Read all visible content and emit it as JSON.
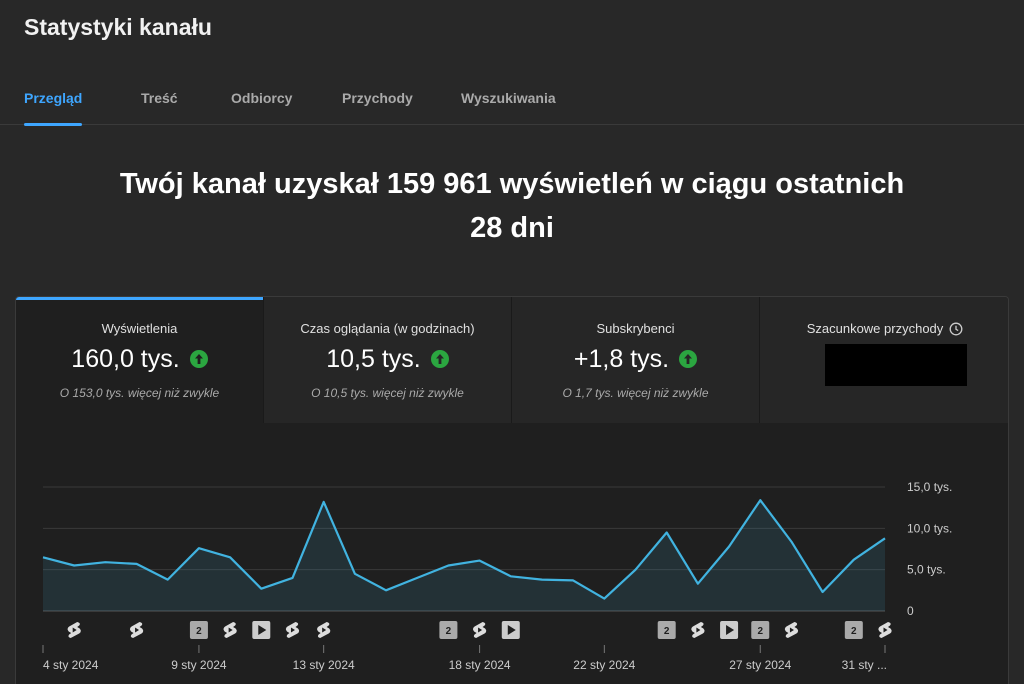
{
  "header": {
    "title": "Statystyki kanału"
  },
  "tabs": [
    {
      "label": "Przegląd",
      "active": true
    },
    {
      "label": "Treść",
      "active": false
    },
    {
      "label": "Odbiorcy",
      "active": false
    },
    {
      "label": "Przychody",
      "active": false
    },
    {
      "label": "Wyszukiwania",
      "active": false
    }
  ],
  "headline": {
    "line1": "Twój kanał uzyskał 159 961 wyświetleń w ciągu ostatnich",
    "line2": "28 dni"
  },
  "metrics": [
    {
      "label": "Wyświetlenia",
      "value": "160,0 tys.",
      "sub": "O 153,0 tys. więcej niż zwykle",
      "trend": "up",
      "active": true
    },
    {
      "label": "Czas oglądania (w godzinach)",
      "value": "10,5 tys.",
      "sub": "O 10,5 tys. więcej niż zwykle",
      "trend": "up",
      "active": false
    },
    {
      "label": "Subskrybenci",
      "value": "+1,8 tys.",
      "sub": "O 1,7 tys. więcej niż zwykle",
      "trend": "up",
      "active": false
    },
    {
      "label": "Szacunkowe przychody",
      "value": "",
      "sub": "",
      "trend": "",
      "icon": "clock-icon",
      "redacted": true,
      "active": false
    }
  ],
  "colors": {
    "accent": "#3ea6ff",
    "positive": "#2ba640",
    "line": "#41b3e0",
    "background": "#282828"
  },
  "chart_data": {
    "type": "area",
    "y_tick_labels": [
      "15,0 tys.",
      "10,0 tys.",
      "5,0 tys.",
      "0"
    ],
    "y_ticks": [
      15000,
      10000,
      5000,
      0
    ],
    "ylim": [
      0,
      15000
    ],
    "x_tick_labels": [
      {
        "label": "4 sty 2024",
        "index": 0
      },
      {
        "label": "9 sty 2024",
        "index": 5
      },
      {
        "label": "13 sty 2024",
        "index": 9
      },
      {
        "label": "18 sty 2024",
        "index": 14
      },
      {
        "label": "22 sty 2024",
        "index": 18
      },
      {
        "label": "27 sty 2024",
        "index": 23
      },
      {
        "label": "31 sty ...",
        "index": 27
      }
    ],
    "values": [
      6500,
      5500,
      5900,
      5700,
      3800,
      7600,
      6500,
      2700,
      4000,
      13200,
      4500,
      2500,
      4000,
      5500,
      6100,
      4200,
      3800,
      3700,
      1500,
      5000,
      9500,
      3300,
      7800,
      13400,
      8400,
      2300,
      6200,
      8800
    ],
    "grid": true,
    "markers": [
      {
        "index": 1,
        "type": "shorts-icon"
      },
      {
        "index": 3,
        "type": "shorts-icon"
      },
      {
        "index": 5,
        "type": "count",
        "text": "2"
      },
      {
        "index": 6,
        "type": "shorts-icon"
      },
      {
        "index": 7,
        "type": "video-icon"
      },
      {
        "index": 8,
        "type": "shorts-icon"
      },
      {
        "index": 9,
        "type": "shorts-icon"
      },
      {
        "index": 13,
        "type": "count",
        "text": "2"
      },
      {
        "index": 14,
        "type": "shorts-icon"
      },
      {
        "index": 15,
        "type": "video-icon"
      },
      {
        "index": 20,
        "type": "count",
        "text": "2"
      },
      {
        "index": 21,
        "type": "shorts-icon"
      },
      {
        "index": 22,
        "type": "video-icon"
      },
      {
        "index": 23,
        "type": "count",
        "text": "2"
      },
      {
        "index": 24,
        "type": "shorts-icon"
      },
      {
        "index": 26,
        "type": "count",
        "text": "2"
      },
      {
        "index": 27,
        "type": "shorts-icon"
      }
    ]
  }
}
